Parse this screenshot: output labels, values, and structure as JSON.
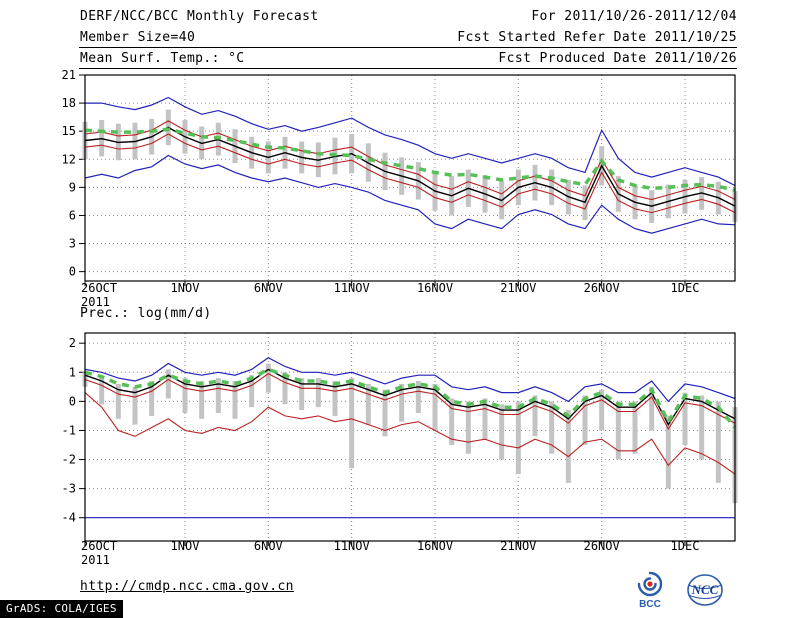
{
  "header": {
    "title": "DERF/NCC/BCC Monthly Forecast",
    "for_range": "For 2011/10/26-2011/12/04",
    "member_size": "Member Size=40",
    "fcst_start": "Fcst Started Refer Date 2011/10/25",
    "var_label": "Mean Surf. Temp.: °C",
    "fcst_produced": "Fcst Produced Date 2011/10/26"
  },
  "footer": {
    "url": "http://cmdp.ncc.cma.gov.cn",
    "grads_credit": "GrADS: COLA/IGES",
    "logos": [
      {
        "name": "bcc-logo",
        "label": "BCC"
      },
      {
        "name": "ncc-logo",
        "label": "NCC"
      }
    ]
  },
  "colors": {
    "blue_line": "#2222bb",
    "red_line": "#bb2222",
    "black_line": "#000000",
    "green_dash": "#55c055",
    "bar_gray": "#c3c3c3",
    "grid": "#8a8a8a"
  },
  "chart_data": [
    {
      "type": "line",
      "title": "Mean Surf. Temp.: °C",
      "xlabel": "",
      "ylabel": "",
      "ylim": [
        -1,
        21
      ],
      "yticks": [
        0,
        3,
        6,
        9,
        12,
        15,
        18,
        21
      ],
      "grid": "dotted",
      "legend": "none",
      "n_days": 40,
      "x_year": "2011",
      "xtick_positions": [
        0,
        6,
        11,
        16,
        21,
        26,
        31,
        36
      ],
      "xtick_labels": [
        "26OCT",
        "1NOV",
        "6NOV",
        "11NOV",
        "16NOV",
        "21NOV",
        "26NOV",
        "1DEC"
      ],
      "series": [
        {
          "name": "ensemble-max",
          "color": "#2222bb",
          "style": "solid",
          "width": 1.2,
          "values": [
            18.0,
            18.0,
            17.6,
            17.3,
            17.8,
            18.6,
            17.6,
            16.8,
            17.2,
            16.6,
            15.8,
            15.2,
            15.6,
            15.0,
            15.4,
            15.9,
            16.4,
            15.4,
            14.6,
            14.1,
            13.5,
            12.6,
            12.1,
            12.6,
            12.1,
            11.6,
            12.1,
            12.6,
            12.1,
            11.1,
            10.6,
            15.1,
            12.1,
            10.6,
            10.1,
            10.6,
            11.1,
            10.6,
            10.1,
            9.2
          ]
        },
        {
          "name": "ensemble-min",
          "color": "#2222bb",
          "style": "solid",
          "width": 1.2,
          "values": [
            10.0,
            10.4,
            10.0,
            10.8,
            11.2,
            12.4,
            11.5,
            11.0,
            11.4,
            10.6,
            10.0,
            9.6,
            10.0,
            9.5,
            9.0,
            9.4,
            9.0,
            8.5,
            7.6,
            7.1,
            6.6,
            5.1,
            4.6,
            5.6,
            5.1,
            4.6,
            6.1,
            6.6,
            6.1,
            5.1,
            4.6,
            7.1,
            5.6,
            4.6,
            4.1,
            4.6,
            5.1,
            5.6,
            5.1,
            5.0
          ]
        },
        {
          "name": "upper-quartile",
          "color": "#bb2222",
          "style": "solid",
          "width": 1.1,
          "values": [
            14.7,
            14.9,
            14.5,
            14.6,
            15.1,
            16.1,
            15.1,
            14.4,
            14.8,
            14.1,
            13.4,
            12.9,
            13.4,
            12.9,
            12.6,
            13.0,
            13.3,
            12.3,
            11.4,
            10.9,
            10.4,
            9.3,
            8.8,
            9.6,
            9.0,
            8.3,
            9.7,
            10.2,
            9.7,
            8.7,
            8.1,
            12.0,
            9.0,
            8.1,
            7.7,
            8.2,
            8.7,
            9.1,
            8.6,
            7.7
          ]
        },
        {
          "name": "lower-quartile",
          "color": "#bb2222",
          "style": "solid",
          "width": 1.1,
          "values": [
            13.3,
            13.5,
            13.1,
            13.2,
            13.7,
            14.7,
            13.7,
            13.0,
            13.4,
            12.7,
            12.0,
            11.5,
            12.0,
            11.5,
            11.2,
            11.6,
            11.9,
            10.9,
            10.0,
            9.5,
            9.0,
            7.9,
            7.4,
            8.2,
            7.6,
            6.9,
            8.3,
            8.8,
            8.3,
            7.3,
            6.7,
            10.6,
            7.6,
            6.7,
            6.3,
            6.8,
            7.3,
            7.7,
            7.2,
            6.3
          ]
        },
        {
          "name": "ensemble-mean",
          "color": "#000000",
          "style": "solid",
          "width": 1.4,
          "values": [
            14.0,
            14.2,
            13.8,
            13.9,
            14.4,
            15.4,
            14.4,
            13.7,
            14.1,
            13.4,
            12.7,
            12.2,
            12.7,
            12.2,
            11.9,
            12.3,
            12.6,
            11.6,
            10.7,
            10.2,
            9.7,
            8.6,
            8.1,
            8.9,
            8.3,
            7.6,
            9.0,
            9.5,
            9.0,
            8.0,
            7.4,
            11.3,
            8.3,
            7.4,
            7.0,
            7.5,
            8.0,
            8.4,
            7.9,
            7.0
          ]
        },
        {
          "name": "climatology",
          "color": "#55c055",
          "style": "dashed",
          "width": 3.5,
          "values": [
            15.1,
            15.0,
            14.9,
            14.9,
            15.0,
            15.2,
            14.8,
            14.4,
            14.3,
            14.0,
            13.6,
            13.3,
            13.2,
            12.9,
            12.6,
            12.5,
            12.4,
            12.0,
            11.6,
            11.3,
            11.0,
            10.6,
            10.3,
            10.4,
            10.1,
            9.8,
            10.0,
            10.2,
            10.0,
            9.6,
            9.3,
            11.8,
            9.8,
            9.2,
            8.9,
            9.0,
            9.2,
            9.3,
            9.1,
            8.7
          ]
        }
      ],
      "bars": {
        "name": "ensemble-spread",
        "color": "#c3c3c3",
        "high": [
          16.0,
          16.2,
          15.8,
          15.9,
          16.3,
          17.3,
          16.2,
          15.5,
          15.9,
          15.2,
          14.4,
          13.9,
          14.4,
          13.9,
          13.8,
          14.3,
          14.7,
          13.7,
          12.7,
          12.2,
          11.7,
          10.7,
          10.2,
          10.9,
          10.3,
          9.7,
          10.9,
          11.4,
          10.9,
          9.8,
          9.2,
          13.4,
          10.2,
          9.2,
          8.7,
          9.3,
          9.8,
          10.1,
          9.6,
          8.6
        ],
        "low": [
          12.0,
          12.3,
          11.9,
          12.0,
          12.5,
          13.5,
          12.6,
          12.0,
          12.4,
          11.6,
          11.0,
          10.5,
          11.0,
          10.5,
          10.1,
          10.4,
          10.5,
          9.6,
          8.7,
          8.2,
          7.7,
          6.5,
          6.0,
          6.9,
          6.3,
          5.6,
          7.1,
          7.6,
          7.1,
          6.1,
          5.5,
          9.2,
          6.4,
          5.6,
          5.2,
          5.7,
          6.2,
          6.6,
          6.1,
          5.3
        ]
      }
    },
    {
      "type": "line",
      "title": "Prec.: log(mm/d)",
      "xlabel": "",
      "ylabel": "",
      "ylim": [
        -4.8,
        2.35
      ],
      "yticks": [
        -4,
        -3,
        -2,
        -1,
        0,
        1,
        2
      ],
      "grid": "dotted",
      "legend": "none",
      "n_days": 40,
      "x_year": "2011",
      "xtick_positions": [
        0,
        6,
        11,
        16,
        21,
        26,
        31,
        36
      ],
      "xtick_labels": [
        "26OCT",
        "1NOV",
        "6NOV",
        "11NOV",
        "16NOV",
        "21NOV",
        "26NOV",
        "1DEC"
      ],
      "series": [
        {
          "name": "ensemble-max",
          "color": "#2222bb",
          "style": "solid",
          "width": 1.2,
          "values": [
            1.1,
            1.0,
            0.8,
            0.7,
            0.9,
            1.3,
            1.0,
            0.9,
            1.0,
            0.9,
            1.1,
            1.5,
            1.2,
            1.0,
            1.0,
            0.9,
            1.0,
            0.8,
            0.6,
            0.8,
            0.9,
            0.9,
            0.5,
            0.4,
            0.5,
            0.3,
            0.3,
            0.5,
            0.3,
            0.0,
            0.5,
            0.6,
            0.3,
            0.3,
            0.7,
            0.0,
            0.6,
            0.5,
            0.3,
            0.1
          ]
        },
        {
          "name": "ensemble-min",
          "color": "#2222bb",
          "style": "solid",
          "width": 1.2,
          "values": [
            -4,
            -4,
            -4,
            -4,
            -4,
            -4,
            -4,
            -4,
            -4,
            -4,
            -4,
            -4,
            -4,
            -4,
            -4,
            -4,
            -4,
            -4,
            -4,
            -4,
            -4,
            -4,
            -4,
            -4,
            -4,
            -4,
            -4,
            -4,
            -4,
            -4,
            -4,
            -4,
            -4,
            -4,
            -4,
            -4,
            -4,
            -4,
            -4,
            -4
          ]
        },
        {
          "name": "upper-quartile",
          "color": "#bb2222",
          "style": "solid",
          "width": 1.1,
          "values": [
            0.75,
            0.55,
            0.25,
            0.15,
            0.35,
            0.75,
            0.45,
            0.35,
            0.45,
            0.35,
            0.55,
            0.95,
            0.65,
            0.45,
            0.45,
            0.35,
            0.45,
            0.25,
            0.05,
            0.25,
            0.35,
            0.25,
            -0.25,
            -0.35,
            -0.25,
            -0.45,
            -0.45,
            -0.15,
            -0.35,
            -0.75,
            -0.15,
            0.05,
            -0.35,
            -0.35,
            0.15,
            -0.95,
            -0.05,
            -0.15,
            -0.45,
            -0.75
          ]
        },
        {
          "name": "lower-quartile",
          "color": "#bb2222",
          "style": "solid",
          "width": 1.1,
          "values": [
            0.3,
            -0.2,
            -1.0,
            -1.2,
            -0.9,
            -0.6,
            -1.0,
            -1.1,
            -0.9,
            -1.0,
            -0.7,
            -0.2,
            -0.5,
            -0.6,
            -0.5,
            -0.7,
            -0.6,
            -0.8,
            -1.0,
            -0.8,
            -0.7,
            -1.0,
            -1.3,
            -1.4,
            -1.3,
            -1.5,
            -1.6,
            -1.3,
            -1.5,
            -1.9,
            -1.4,
            -1.3,
            -1.7,
            -1.7,
            -1.3,
            -2.2,
            -1.6,
            -1.8,
            -2.1,
            -2.5
          ]
        },
        {
          "name": "ensemble-mean",
          "color": "#000000",
          "style": "solid",
          "width": 1.4,
          "values": [
            0.9,
            0.7,
            0.4,
            0.3,
            0.5,
            0.9,
            0.6,
            0.5,
            0.6,
            0.5,
            0.7,
            1.1,
            0.8,
            0.6,
            0.6,
            0.5,
            0.6,
            0.4,
            0.2,
            0.4,
            0.5,
            0.4,
            -0.1,
            -0.2,
            -0.1,
            -0.3,
            -0.3,
            0.0,
            -0.2,
            -0.6,
            0.0,
            0.2,
            -0.2,
            -0.2,
            0.3,
            -0.8,
            0.1,
            0.0,
            -0.3,
            -0.6
          ]
        },
        {
          "name": "climatology",
          "color": "#55c055",
          "style": "dashed",
          "width": 3.5,
          "values": [
            1.0,
            0.85,
            0.6,
            0.5,
            0.6,
            0.9,
            0.7,
            0.6,
            0.7,
            0.6,
            0.8,
            1.1,
            0.9,
            0.7,
            0.7,
            0.6,
            0.7,
            0.5,
            0.3,
            0.5,
            0.6,
            0.5,
            0.0,
            -0.1,
            0.0,
            -0.2,
            -0.2,
            0.1,
            -0.1,
            -0.5,
            0.1,
            0.3,
            -0.1,
            -0.1,
            0.4,
            -0.7,
            0.2,
            0.1,
            -0.2,
            -0.9
          ]
        }
      ],
      "bars": {
        "name": "ensemble-spread",
        "color": "#c3c3c3",
        "high": [
          1.0,
          0.85,
          0.6,
          0.5,
          0.7,
          1.1,
          0.8,
          0.7,
          0.8,
          0.7,
          0.9,
          1.3,
          1.0,
          0.8,
          0.8,
          0.7,
          0.8,
          0.6,
          0.4,
          0.6,
          0.7,
          0.6,
          0.1,
          0.0,
          0.1,
          -0.1,
          0.0,
          0.2,
          0.0,
          -0.3,
          0.2,
          0.4,
          0.0,
          0.0,
          0.5,
          -0.5,
          0.3,
          0.2,
          0.0,
          -0.2
        ],
        "low": [
          0.5,
          -0.1,
          -0.6,
          -0.8,
          -0.5,
          0.1,
          -0.4,
          -0.6,
          -0.4,
          -0.6,
          -0.2,
          0.3,
          -0.1,
          -0.3,
          -0.2,
          -0.5,
          -2.3,
          -0.8,
          -1.2,
          -0.7,
          -0.4,
          -1.0,
          -1.5,
          -1.8,
          -1.3,
          -2.0,
          -2.5,
          -1.2,
          -1.8,
          -2.8,
          -1.5,
          -1.0,
          -2.0,
          -1.8,
          -1.0,
          -3.0,
          -1.5,
          -2.0,
          -2.8,
          -3.5
        ]
      }
    }
  ]
}
